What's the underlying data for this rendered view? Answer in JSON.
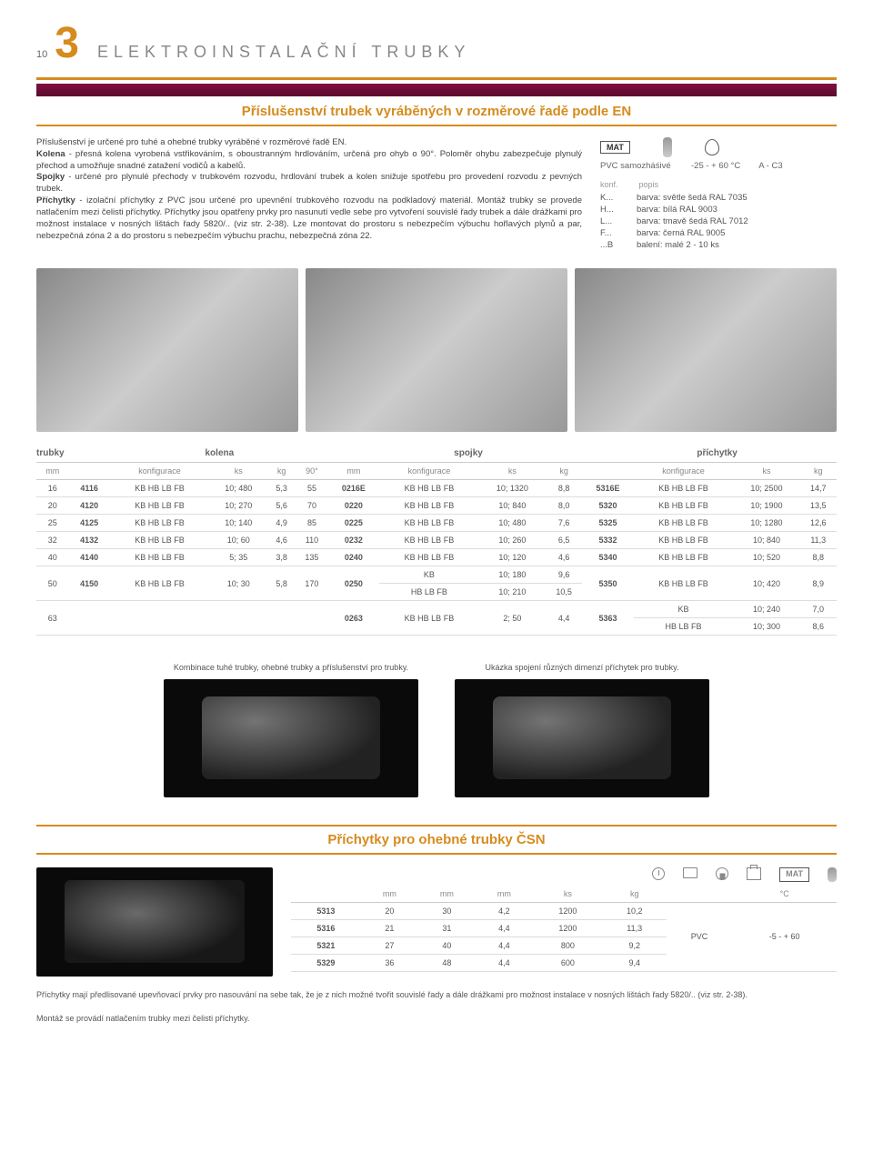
{
  "page_number": "10",
  "chapter_number": "3",
  "header_title": "ELEKTROINSTALAČNÍ TRUBKY",
  "section_title": "Příslušenství trubek vyráběných v rozměrové řadě podle EN",
  "intro": {
    "p1": "Příslušenství je určené pro tuhé a ohebné trubky vyráběné v rozměrové řadě EN.",
    "b1": "Kolena",
    "p2": " - přesná kolena vyrobená vstřikováním, s oboustranným hrdlováním, určená pro ohyb o 90°. Poloměr ohybu zabezpečuje plynulý přechod a umožňuje snadné zatažení vodičů a kabelů.",
    "b2": "Spojky",
    "p3": " - určené pro plynulé přechody v trubkovém rozvodu, hrdlování trubek a kolen snižuje spotřebu pro provedení rozvodu z pevných trubek.",
    "b3": "Příchytky",
    "p4": " - izolační příchytky z PVC jsou určené pro upevnění trubkového rozvodu na podkladový materiál. Montáž trubky se provede natlačením mezi čelisti příchytky. Příchytky jsou opatřeny prvky pro nasunutí vedle sebe pro vytvoření souvislé řady trubek a dále drážkami pro možnost instalace v nosných lištách řady 5820/.. (viz str. 2-38). Lze montovat do prostoru s nebezpečím výbuchu hořlavých plynů a par, nebezpečná zóna 2 a do prostoru s nebezpečím výbuchu prachu, nebezpečná zóna 22."
  },
  "spec": {
    "mat_label": "MAT",
    "material": "PVC samozháśivé",
    "temp": "-25 - + 60 °C",
    "class": "A - C3",
    "legend_head_k": "konf.",
    "legend_head_p": "popis",
    "rows": [
      {
        "k": "K...",
        "v": "barva: světle šedá RAL 7035"
      },
      {
        "k": "H...",
        "v": "barva: bílá RAL 9003"
      },
      {
        "k": "L...",
        "v": "barva: tmavě šedá RAL 7012"
      },
      {
        "k": "F...",
        "v": "barva: černá RAL 9005"
      },
      {
        "k": "...B",
        "v": "balení: malé 2 - 10 ks"
      }
    ]
  },
  "cat": {
    "trubky": "trubky",
    "kolena": "kolena",
    "spojky": "spojky",
    "prichytky": "příchytky"
  },
  "table_headers": {
    "mm": "mm",
    "konf": "konfigurace",
    "ks": "ks",
    "kg": "kg",
    "ang": "90°"
  },
  "table_rows": [
    {
      "mm": "16",
      "k_code": "4116",
      "k_cfg": "KB HB LB FB",
      "k_ks": "10; 480",
      "k_kg": "5,3",
      "k_ang": "55",
      "s_code": "0216E",
      "s_cfg": "KB HB LB FB",
      "s_ks": "10; 1320",
      "s_kg": "8,8",
      "p_code": "5316E",
      "p_cfg": "KB HB LB FB",
      "p_ks": "10; 2500",
      "p_kg": "14,7"
    },
    {
      "mm": "20",
      "k_code": "4120",
      "k_cfg": "KB HB LB FB",
      "k_ks": "10; 270",
      "k_kg": "5,6",
      "k_ang": "70",
      "s_code": "0220",
      "s_cfg": "KB HB LB FB",
      "s_ks": "10; 840",
      "s_kg": "8,0",
      "p_code": "5320",
      "p_cfg": "KB HB LB FB",
      "p_ks": "10; 1900",
      "p_kg": "13,5"
    },
    {
      "mm": "25",
      "k_code": "4125",
      "k_cfg": "KB HB LB FB",
      "k_ks": "10; 140",
      "k_kg": "4,9",
      "k_ang": "85",
      "s_code": "0225",
      "s_cfg": "KB HB LB FB",
      "s_ks": "10; 480",
      "s_kg": "7,6",
      "p_code": "5325",
      "p_cfg": "KB HB LB FB",
      "p_ks": "10; 1280",
      "p_kg": "12,6"
    },
    {
      "mm": "32",
      "k_code": "4132",
      "k_cfg": "KB HB LB FB",
      "k_ks": "10; 60",
      "k_kg": "4,6",
      "k_ang": "110",
      "s_code": "0232",
      "s_cfg": "KB HB LB FB",
      "s_ks": "10; 260",
      "s_kg": "6,5",
      "p_code": "5332",
      "p_cfg": "KB HB LB FB",
      "p_ks": "10; 840",
      "p_kg": "11,3"
    },
    {
      "mm": "40",
      "k_code": "4140",
      "k_cfg": "KB HB LB FB",
      "k_ks": "5; 35",
      "k_kg": "3,8",
      "k_ang": "135",
      "s_code": "0240",
      "s_cfg": "KB HB LB FB",
      "s_ks": "10; 120",
      "s_kg": "4,6",
      "p_code": "5340",
      "p_cfg": "KB HB LB FB",
      "p_ks": "10; 520",
      "p_kg": "8,8"
    }
  ],
  "row50": {
    "mm": "50",
    "k_code": "4150",
    "k_cfg": "KB HB LB FB",
    "k_ks": "10; 30",
    "k_kg": "5,8",
    "k_ang": "170",
    "s_code": "0250",
    "s_cfg1": "KB",
    "s_ks1": "10; 180",
    "s_kg1": "9,6",
    "s_cfg2": "HB LB FB",
    "s_ks2": "10; 210",
    "s_kg2": "10,5",
    "p_code": "5350",
    "p_cfg": "KB HB LB FB",
    "p_ks": "10; 420",
    "p_kg": "8,9"
  },
  "row63": {
    "mm": "63",
    "s_code": "0263",
    "s_cfg": "KB HB LB FB",
    "s_ks": "2; 50",
    "s_kg": "4,4",
    "p_code": "5363",
    "p_cfg1": "KB",
    "p_ks1": "10; 240",
    "p_kg1": "7,0",
    "p_cfg2": "HB LB FB",
    "p_ks2": "10; 300",
    "p_kg2": "8,6"
  },
  "combo": {
    "cap1": "Kombinace tuhé trubky, ohebné trubky a příslušenství pro trubky.",
    "cap2": "Ukázka spojení různých dimenzí příchytek pro trubky."
  },
  "csn_title": "Příchytky pro ohebné trubky ČSN",
  "csn_headers": {
    "mm": "mm",
    "ks": "ks",
    "kg": "kg",
    "mat": "MAT",
    "c": "°C"
  },
  "csn_rows": [
    {
      "code": "5313",
      "a": "20",
      "b": "30",
      "c": "4,2",
      "ks": "1200",
      "kg": "10,2"
    },
    {
      "code": "5316",
      "a": "21",
      "b": "31",
      "c": "4,4",
      "ks": "1200",
      "kg": "11,3"
    },
    {
      "code": "5321",
      "a": "27",
      "b": "40",
      "c": "4,4",
      "ks": "800",
      "kg": "9,2"
    },
    {
      "code": "5329",
      "a": "36",
      "b": "48",
      "c": "4,4",
      "ks": "600",
      "kg": "9,4"
    }
  ],
  "csn_mat": "PVC",
  "csn_temp": "-5 - + 60",
  "footnote1": "Příchytky mají předlisované upevňovací prvky pro nasouvání na sebe tak, že je z nich možné tvořit souvislé řady a dále drážkami pro možnost instalace v nosných lištách řady 5820/.. (viz str. 2-38).",
  "footnote2": "Montáž se provádí natlačením trubky mezi čelisti příchytky."
}
